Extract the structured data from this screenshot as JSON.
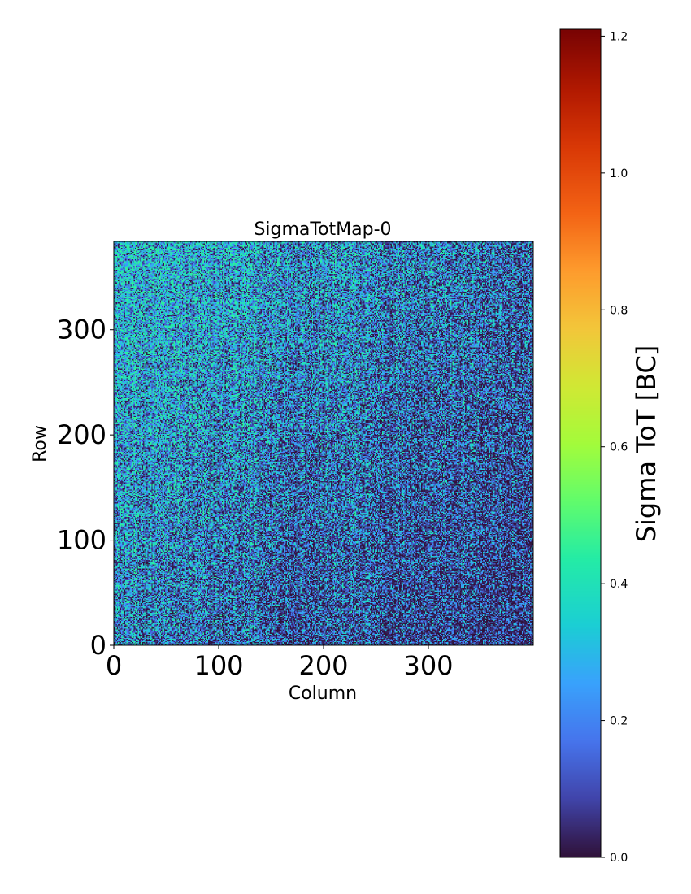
{
  "chart_data": {
    "type": "heatmap",
    "title": "SigmaTotMap-0",
    "xlabel": "Column",
    "ylabel": "Row",
    "xlim": [
      0,
      400
    ],
    "ylim": [
      0,
      384
    ],
    "x_ticks": [
      0,
      100,
      200,
      300
    ],
    "x_tick_labels": [
      "0",
      "100",
      "200",
      "300"
    ],
    "y_ticks": [
      0,
      100,
      200,
      300
    ],
    "y_tick_labels": [
      "0",
      "100",
      "200",
      "300"
    ],
    "grid": false,
    "colormap": "turbo",
    "colorbar": {
      "label": "Sigma ToT [BC]",
      "range": [
        0.0,
        1.21
      ],
      "ticks": [
        0.0,
        0.2,
        0.4,
        0.6,
        0.8,
        1.0,
        1.2
      ],
      "tick_labels": [
        "0.0",
        "0.2",
        "0.4",
        "0.6",
        "0.8",
        "1.0",
        "1.2"
      ]
    },
    "description_of_values": "Noisy per-pixel map; most values between 0.0 and about 0.45 BC, higher (~0.3-0.4) toward the upper-left, lower (~0.0-0.15) toward the lower-right, with faint vertical column stripes.",
    "value_profile": {
      "upper_left_mean": 0.33,
      "lower_right_mean": 0.08,
      "max_typical": 0.45
    }
  }
}
